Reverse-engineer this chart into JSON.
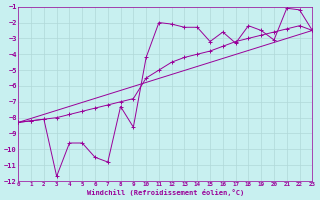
{
  "xlabel": "Windchill (Refroidissement éolien,°C)",
  "bg_color": "#c8f0f0",
  "grid_color": "#aadddd",
  "line_color": "#990099",
  "xlim": [
    0,
    23
  ],
  "ylim": [
    -12,
    -1
  ],
  "xticks": [
    0,
    1,
    2,
    3,
    4,
    5,
    6,
    7,
    8,
    9,
    10,
    11,
    12,
    13,
    14,
    15,
    16,
    17,
    18,
    19,
    20,
    21,
    22,
    23
  ],
  "yticks": [
    -1,
    -2,
    -3,
    -4,
    -5,
    -6,
    -7,
    -8,
    -9,
    -10,
    -11,
    -12
  ],
  "line1_x": [
    0,
    1,
    2,
    3,
    4,
    5,
    6,
    7,
    8,
    9,
    10,
    11,
    12,
    13,
    14,
    15,
    16,
    17,
    18,
    19,
    20,
    21,
    22,
    23
  ],
  "line1_y": [
    -8.3,
    -8.2,
    -8.1,
    -11.7,
    -9.6,
    -9.6,
    -10.5,
    -10.8,
    -7.3,
    -8.6,
    -4.2,
    -2.0,
    -2.1,
    -2.3,
    -2.3,
    -3.2,
    -2.6,
    -3.3,
    -2.2,
    -2.5,
    -3.1,
    -1.1,
    -1.2,
    -2.5
  ],
  "line2_x": [
    0,
    1,
    2,
    3,
    4,
    5,
    6,
    7,
    8,
    9,
    10,
    11,
    12,
    13,
    14,
    15,
    16,
    17,
    18,
    19,
    20,
    21,
    22,
    23
  ],
  "line2_y": [
    -8.3,
    -8.2,
    -8.1,
    -8.0,
    -7.8,
    -7.6,
    -7.4,
    -7.2,
    -7.0,
    -6.8,
    -5.5,
    -5.0,
    -4.5,
    -4.2,
    -4.0,
    -3.8,
    -3.5,
    -3.2,
    -3.0,
    -2.8,
    -2.6,
    -2.4,
    -2.2,
    -2.5
  ],
  "line3_x": [
    0,
    23
  ],
  "line3_y": [
    -8.3,
    -2.5
  ]
}
